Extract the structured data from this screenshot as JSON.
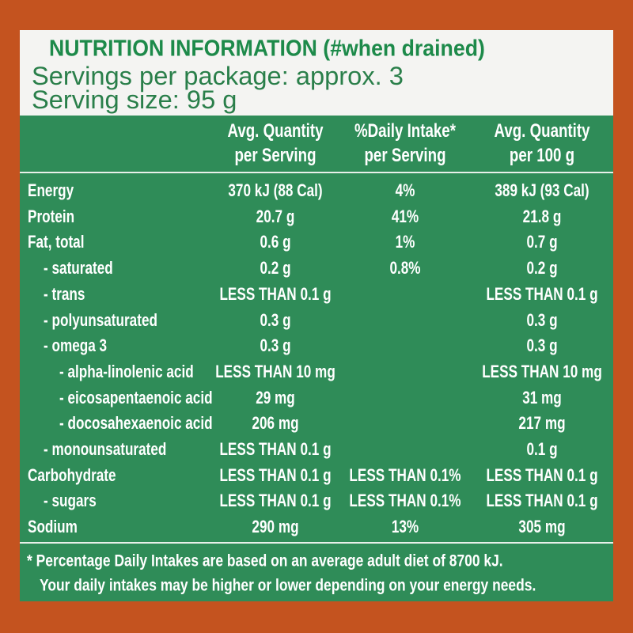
{
  "header": {
    "title": "NUTRITION INFORMATION (#when drained)",
    "servings_per_package": "Servings per package: approx. 3",
    "serving_size": "Serving size: 95 g"
  },
  "table": {
    "columns": [
      [
        "Avg. Quantity",
        "per Serving"
      ],
      [
        "%Daily Intake*",
        "per Serving"
      ],
      [
        "Avg. Quantity",
        "per 100 g"
      ]
    ],
    "rows": [
      {
        "label": "Energy",
        "cells": [
          "370 kJ (88 Cal)",
          "4%",
          "389 kJ (93 Cal)"
        ]
      },
      {
        "label": "Protein",
        "cells": [
          "20.7 g",
          "41%",
          "21.8 g"
        ]
      },
      {
        "label": "Fat, total",
        "cells": [
          "0.6 g",
          "1%",
          "0.7 g"
        ],
        "rows": [
          {
            "label": "- saturated",
            "cells": [
              "0.2 g",
              "0.8%",
              "0.2 g"
            ]
          },
          {
            "label": "- trans",
            "cells": [
              "LESS THAN 0.1 g",
              null,
              "LESS THAN 0.1 g"
            ]
          },
          {
            "label": "- polyunsaturated",
            "cells": [
              "0.3 g",
              null,
              "0.3 g"
            ]
          },
          {
            "label": "- omega 3",
            "cells": [
              "0.3 g",
              null,
              "0.3 g"
            ],
            "rows": [
              {
                "label": "- alpha-linolenic acid",
                "cells": [
                  "LESS THAN 10 mg",
                  null,
                  "LESS THAN 10 mg"
                ]
              },
              {
                "label": "- eicosapentaenoic acid",
                "cells": [
                  "29 mg",
                  null,
                  "31 mg"
                ]
              },
              {
                "label": "- docosahexaenoic acid",
                "cells": [
                  "206 mg",
                  null,
                  "217 mg"
                ]
              }
            ]
          },
          {
            "label": "- monounsaturated",
            "cells": [
              "LESS THAN 0.1 g",
              null,
              "0.1 g"
            ]
          }
        ]
      },
      {
        "label": "Carbohydrate",
        "cells": [
          "LESS THAN 0.1 g",
          "LESS THAN 0.1%",
          "LESS THAN 0.1 g"
        ],
        "rows": [
          {
            "label": "- sugars",
            "cells": [
              "LESS THAN 0.1 g",
              "LESS THAN 0.1%",
              "LESS THAN 0.1 g"
            ]
          }
        ]
      },
      {
        "label": "Sodium",
        "cells": [
          "290 mg",
          "13%",
          "305 mg"
        ]
      }
    ]
  },
  "footnote": [
    "* Percentage Daily Intakes are based on an average adult diet of 8700 kJ.",
    "Your daily intakes may be higher or lower depending on your energy needs."
  ]
}
